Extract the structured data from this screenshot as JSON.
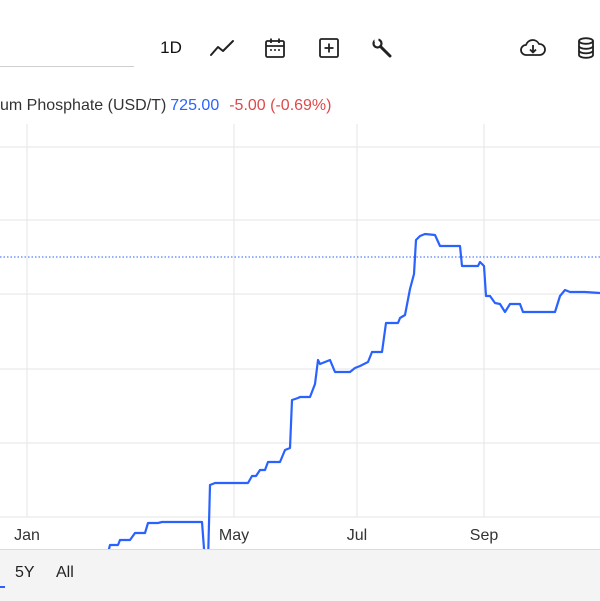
{
  "toolbar": {
    "interval_label": "1D",
    "icons": {
      "chart_type": "line-chart-icon",
      "calendar": "calendar-icon",
      "add": "add-box-icon",
      "settings": "wrench-icon",
      "download": "cloud-download-icon",
      "data": "database-icon"
    }
  },
  "legend": {
    "name": "um Phosphate (USD/T)",
    "price": "725.00",
    "change": "-5.00 (-0.69%)"
  },
  "range_buttons": [
    "5Y",
    "All"
  ],
  "colors": {
    "line": "#2962ff",
    "change_negative": "#e0484a",
    "grid": "#e6e6e6"
  },
  "chart_data": {
    "type": "line",
    "series": [
      {
        "values": [
          [
            0,
            566
          ],
          [
            2,
            566
          ],
          [
            5,
            575
          ],
          [
            15,
            575
          ],
          [
            25,
            575
          ],
          [
            28,
            575
          ],
          [
            33,
            570
          ],
          [
            40,
            570
          ],
          [
            42,
            563
          ],
          [
            50,
            563
          ],
          [
            70,
            563
          ],
          [
            72,
            564
          ],
          [
            90,
            564
          ],
          [
            95,
            560
          ],
          [
            100,
            560
          ],
          [
            103,
            553
          ],
          [
            108,
            553
          ],
          [
            110,
            545
          ],
          [
            118,
            545
          ],
          [
            120,
            540
          ],
          [
            130,
            540
          ],
          [
            135,
            533
          ],
          [
            145,
            533
          ],
          [
            148,
            523
          ],
          [
            158,
            523
          ],
          [
            162,
            522
          ],
          [
            180,
            522
          ],
          [
            200,
            522
          ],
          [
            202,
            522
          ],
          [
            205,
            562
          ],
          [
            208,
            562
          ],
          [
            210,
            485
          ],
          [
            215,
            483
          ],
          [
            248,
            483
          ],
          [
            252,
            476
          ],
          [
            256,
            476
          ],
          [
            260,
            470
          ],
          [
            265,
            470
          ],
          [
            268,
            462
          ],
          [
            280,
            462
          ],
          [
            285,
            450
          ],
          [
            290,
            448
          ],
          [
            292,
            400
          ],
          [
            298,
            398
          ],
          [
            300,
            397
          ],
          [
            310,
            397
          ],
          [
            315,
            384
          ],
          [
            318,
            360
          ],
          [
            320,
            364
          ],
          [
            325,
            362
          ],
          [
            330,
            360
          ],
          [
            335,
            372
          ],
          [
            350,
            372
          ],
          [
            355,
            368
          ],
          [
            360,
            366
          ],
          [
            368,
            362
          ],
          [
            372,
            352
          ],
          [
            382,
            352
          ],
          [
            386,
            323
          ],
          [
            398,
            323
          ],
          [
            400,
            318
          ],
          [
            405,
            315
          ],
          [
            410,
            289
          ],
          [
            414,
            274
          ],
          [
            416,
            240
          ],
          [
            420,
            236
          ],
          [
            425,
            234
          ],
          [
            435,
            235
          ],
          [
            440,
            246
          ],
          [
            460,
            246
          ],
          [
            462,
            266
          ],
          [
            470,
            266
          ],
          [
            478,
            266
          ],
          [
            480,
            262
          ],
          [
            484,
            266
          ],
          [
            486,
            296
          ],
          [
            490,
            296
          ],
          [
            495,
            303
          ],
          [
            500,
            304
          ],
          [
            505,
            312
          ],
          [
            510,
            304
          ],
          [
            520,
            304
          ],
          [
            523,
            312
          ],
          [
            555,
            312
          ],
          [
            560,
            296
          ],
          [
            565,
            290
          ],
          [
            570,
            292
          ],
          [
            585,
            292
          ],
          [
            600,
            293
          ]
        ]
      }
    ],
    "x_tick_labels": [
      "Jan",
      "May",
      "Jul",
      "Sep"
    ],
    "reference_line_price": "725.00",
    "grid": true
  }
}
